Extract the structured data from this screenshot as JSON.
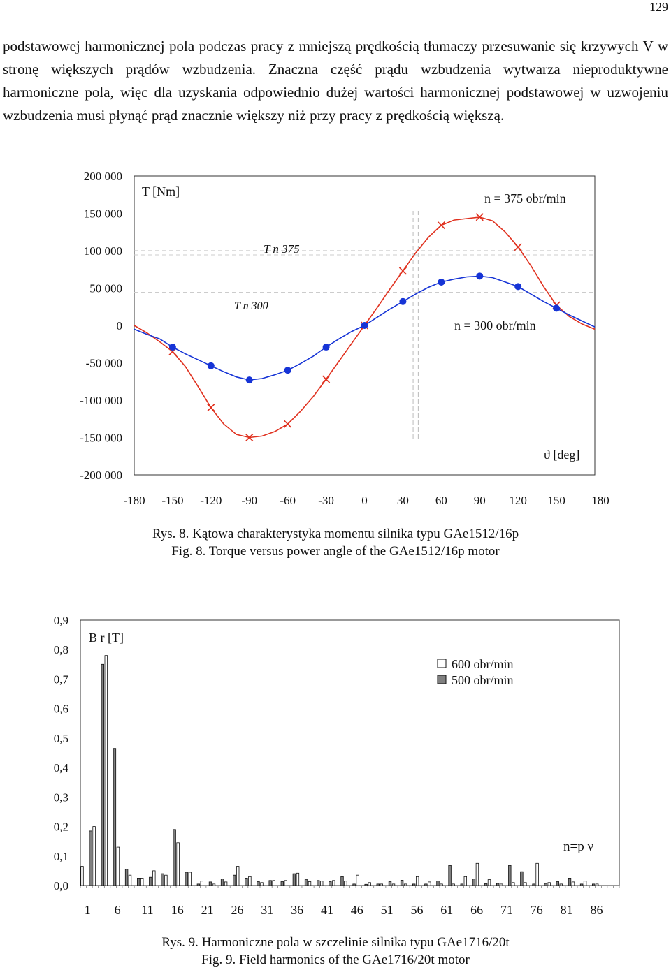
{
  "page": {
    "number": "129"
  },
  "paragraph": {
    "text": "podstawowej harmonicznej pola podczas pracy z mniejszą prędkością tłumaczy przesuwanie się krzywych V w stronę większych prądów wzbudzenia. Znaczna część prądu wzbudzenia wytwarza nieproduktywne harmoniczne pola, więc dla uzyskania odpowiednio dużej wartości harmonicznej podstawowej w uzwojeniu wzbudzenia musi płynąć prąd znacznie większy niż przy pracy z prędkością większą."
  },
  "figure8": {
    "caption_pl": "Rys. 8. Kątowa charakterystyka momentu silnika typu GAe1512/16p",
    "caption_en": "Fig. 8. Torque versus power angle of the GAe1512/16p motor"
  },
  "figure9": {
    "caption_pl": "Rys. 9. Harmoniczne pola w szczelinie silnika typu GAe1716/20t",
    "caption_en": "Fig. 9. Field harmonics of the GAe1716/20t motor"
  },
  "chart_data": [
    {
      "type": "line",
      "ylabel": "T [Nm]",
      "xlabel": "ϑ [deg]",
      "xlim": [
        -180,
        180
      ],
      "ylim": [
        -200000,
        200000
      ],
      "x_ticks": [
        "-180",
        "-150",
        "-120",
        "-90",
        "-60",
        "-30",
        "0",
        "30",
        "60",
        "90",
        "120",
        "150",
        "180"
      ],
      "y_ticks": [
        "200 000",
        "150 000",
        "100 000",
        "50 000",
        "0",
        "-50 000",
        "-100 000",
        "-150 000",
        "-200 000"
      ],
      "annotations": {
        "label_375": "n = 375 obr/min",
        "label_300": "n = 300 obr/min",
        "tn375": "T n 375",
        "tn300": "T n 300"
      },
      "tn375_value": 100000,
      "tn300_value": 50000,
      "series": [
        {
          "name": "n = 375 obr/min",
          "color": "#e0301e",
          "marker": "x",
          "points": [
            [
              -150,
              -35000
            ],
            [
              -120,
              -110000
            ],
            [
              -90,
              -150000
            ],
            [
              -60,
              -132000
            ],
            [
              -30,
              -72000
            ],
            [
              0,
              0
            ],
            [
              30,
              73000
            ],
            [
              60,
              134000
            ],
            [
              90,
              145000
            ],
            [
              120,
              105000
            ],
            [
              150,
              27000
            ]
          ],
          "curve": [
            [
              -180,
              0
            ],
            [
              -170,
              -10000
            ],
            [
              -160,
              -22000
            ],
            [
              -150,
              -35000
            ],
            [
              -140,
              -55000
            ],
            [
              -130,
              -82000
            ],
            [
              -120,
              -110000
            ],
            [
              -110,
              -132000
            ],
            [
              -100,
              -146000
            ],
            [
              -90,
              -150000
            ],
            [
              -80,
              -148000
            ],
            [
              -70,
              -142000
            ],
            [
              -60,
              -132000
            ],
            [
              -50,
              -115000
            ],
            [
              -40,
              -95000
            ],
            [
              -30,
              -72000
            ],
            [
              -20,
              -48000
            ],
            [
              -10,
              -24000
            ],
            [
              0,
              0
            ],
            [
              10,
              24000
            ],
            [
              20,
              49000
            ],
            [
              30,
              73000
            ],
            [
              40,
              97000
            ],
            [
              50,
              118000
            ],
            [
              60,
              134000
            ],
            [
              70,
              141000
            ],
            [
              80,
              143000
            ],
            [
              90,
              145000
            ],
            [
              100,
              140000
            ],
            [
              110,
              125000
            ],
            [
              120,
              105000
            ],
            [
              130,
              80000
            ],
            [
              140,
              52000
            ],
            [
              150,
              27000
            ],
            [
              160,
              12000
            ],
            [
              170,
              2000
            ],
            [
              180,
              -5000
            ]
          ]
        },
        {
          "name": "n = 300 obr/min",
          "color": "#1634d6",
          "marker": "o",
          "points": [
            [
              -150,
              -29000
            ],
            [
              -120,
              -54000
            ],
            [
              -90,
              -73000
            ],
            [
              -60,
              -60000
            ],
            [
              -30,
              -29000
            ],
            [
              0,
              0
            ],
            [
              30,
              32000
            ],
            [
              60,
              58000
            ],
            [
              90,
              66000
            ],
            [
              120,
              52000
            ],
            [
              150,
              23000
            ]
          ],
          "curve": [
            [
              -180,
              -5000
            ],
            [
              -170,
              -12000
            ],
            [
              -160,
              -18000
            ],
            [
              -150,
              -29000
            ],
            [
              -140,
              -38000
            ],
            [
              -130,
              -46000
            ],
            [
              -120,
              -54000
            ],
            [
              -110,
              -62000
            ],
            [
              -100,
              -69000
            ],
            [
              -90,
              -73000
            ],
            [
              -80,
              -71000
            ],
            [
              -70,
              -66000
            ],
            [
              -60,
              -60000
            ],
            [
              -50,
              -51000
            ],
            [
              -40,
              -41000
            ],
            [
              -30,
              -29000
            ],
            [
              -20,
              -18000
            ],
            [
              -10,
              -8000
            ],
            [
              0,
              0
            ],
            [
              10,
              11000
            ],
            [
              20,
              22000
            ],
            [
              30,
              32000
            ],
            [
              40,
              42000
            ],
            [
              50,
              51000
            ],
            [
              60,
              58000
            ],
            [
              70,
              62000
            ],
            [
              80,
              65000
            ],
            [
              90,
              66000
            ],
            [
              100,
              64000
            ],
            [
              110,
              58000
            ],
            [
              120,
              52000
            ],
            [
              130,
              42000
            ],
            [
              140,
              32000
            ],
            [
              150,
              23000
            ],
            [
              160,
              14000
            ],
            [
              170,
              6000
            ],
            [
              180,
              -2000
            ]
          ]
        }
      ]
    },
    {
      "type": "bar",
      "ylabel": "B r [T]",
      "xlabel": "n=p ν",
      "ylim": [
        0,
        0.9
      ],
      "y_ticks": [
        "0,9",
        "0,8",
        "0,7",
        "0,6",
        "0,5",
        "0,4",
        "0,3",
        "0,2",
        "0,1",
        "0,0"
      ],
      "x_tick_labels": [
        "1",
        "6",
        "11",
        "16",
        "21",
        "26",
        "31",
        "36",
        "41",
        "46",
        "51",
        "56",
        "61",
        "66",
        "71",
        "76",
        "81",
        "86"
      ],
      "categories": [
        1,
        2,
        3,
        4,
        5,
        6,
        7,
        8,
        9,
        10,
        11,
        12,
        13,
        14,
        15,
        16,
        17,
        18,
        19,
        20,
        21,
        22,
        23,
        24,
        25,
        26,
        27,
        28,
        29,
        30,
        31,
        32,
        33,
        34,
        35,
        36,
        37,
        38,
        39,
        40,
        41,
        42,
        43,
        44,
        45,
        46,
        47,
        48,
        49,
        50,
        51,
        52,
        53,
        54,
        55,
        56,
        57,
        58,
        59,
        60,
        61,
        62,
        63,
        64,
        65,
        66,
        67,
        68,
        69,
        70,
        71,
        72,
        73,
        74,
        75,
        76,
        77,
        78,
        79,
        80,
        81,
        82,
        83,
        84,
        85,
        86,
        87,
        88,
        89,
        90
      ],
      "series": [
        {
          "name": "600 obr/min",
          "color": "#ffffff",
          "values": [
            0.065,
            0.0,
            0.0,
            0.0,
            0.0,
            0.0,
            0.0,
            0.0,
            0.0,
            0.0,
            0.0,
            0.0,
            0.0,
            0.0,
            0.0,
            0.0,
            0.0,
            0.0,
            0.0,
            0.0,
            0.0,
            0.0,
            0.0,
            0.0,
            0.0,
            0.0,
            0.0,
            0.0,
            0.0,
            0.0,
            0.0,
            0.0,
            0.0,
            0.0,
            0.0,
            0.0,
            0.0,
            0.0,
            0.0,
            0.0,
            0.0,
            0.0,
            0.0,
            0.0,
            0.0,
            0.0,
            0.0,
            0.0,
            0.0,
            0.0,
            0.0,
            0.0,
            0.0,
            0.0,
            0.0,
            0.0,
            0.0,
            0.0,
            0.0,
            0.0,
            0.0,
            0.0,
            0.0,
            0.0,
            0.0,
            0.0,
            0.0,
            0.0,
            0.0,
            0.0,
            0.0,
            0.0,
            0.0,
            0.0,
            0.0,
            0.0,
            0.0,
            0.0,
            0.0,
            0.0,
            0.0,
            0.0,
            0.0,
            0.0,
            0.0,
            0.0,
            0.0,
            0.0,
            0.0,
            0.005
          ],
          "display_values": [
            0.065,
            0,
            0.2,
            0,
            0.78,
            0,
            0.13,
            0,
            0.035,
            0,
            0.025,
            0,
            0.05,
            0,
            0.035,
            0,
            0.145,
            0,
            0.045,
            0,
            0.015,
            0,
            0.005,
            0,
            0.012,
            0,
            0.065,
            0,
            0.03,
            0,
            0.01,
            0,
            0.017,
            0,
            0.017,
            0,
            0.042,
            0,
            0.013,
            0,
            0.015,
            0,
            0.017,
            0,
            0.015,
            0,
            0.035,
            0,
            0.01,
            0,
            0.005,
            0,
            0.005,
            0,
            0.005,
            0,
            0.03,
            0,
            0.012,
            0,
            0.005,
            0,
            0.005,
            0,
            0.03,
            0,
            0.075,
            0,
            0.02,
            0,
            0.005,
            0,
            0.01,
            0,
            0.01,
            0,
            0.075,
            0,
            0.01,
            0,
            0.005,
            0,
            0.012,
            0,
            0.015,
            0,
            0.005,
            0
          ]
        },
        {
          "name": "500 obr/min",
          "color": "#808080",
          "display_values": [
            0,
            0.185,
            0,
            0.75,
            0,
            0.465,
            0,
            0.055,
            0,
            0.025,
            0,
            0.028,
            0,
            0.04,
            0,
            0.19,
            0,
            0.045,
            0,
            0.005,
            0,
            0.012,
            0,
            0.022,
            0,
            0.035,
            0,
            0.025,
            0,
            0.013,
            0,
            0.017,
            0,
            0.013,
            0,
            0.04,
            0,
            0.02,
            0,
            0.017,
            0,
            0.013,
            0,
            0.03,
            0,
            0.005,
            0,
            0.004,
            0,
            0.005,
            0,
            0.013,
            0,
            0.018,
            0,
            0.005,
            0,
            0.005,
            0,
            0.015,
            0,
            0.068,
            0,
            0.005,
            0,
            0.022,
            0,
            0.006,
            0,
            0.007,
            0,
            0.068,
            0,
            0.047,
            0,
            0.005,
            0,
            0.007,
            0,
            0.013,
            0,
            0.025,
            0,
            0.005,
            0,
            0.005
          ]
        }
      ]
    }
  ]
}
